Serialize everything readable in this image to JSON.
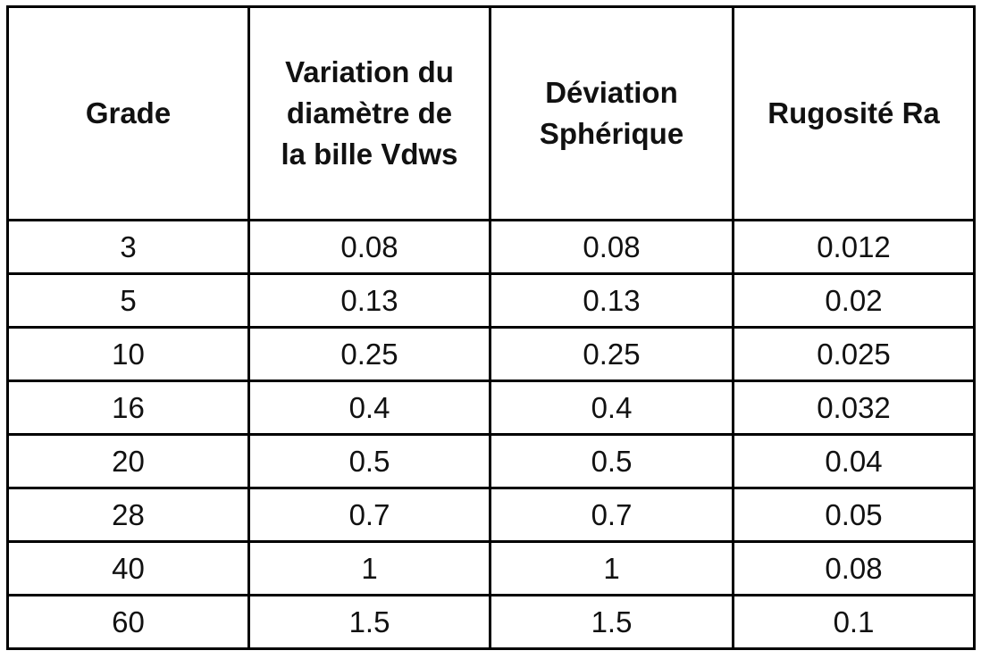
{
  "table": {
    "headers": [
      [
        "Grade"
      ],
      [
        "Variation du",
        "diamètre de",
        "la bille Vdws"
      ],
      [
        "Déviation",
        "Sphérique"
      ],
      [
        "Rugosité Ra"
      ]
    ],
    "rows": [
      [
        3,
        0.08,
        0.08,
        0.012
      ],
      [
        5,
        0.13,
        0.13,
        0.02
      ],
      [
        10,
        0.25,
        0.25,
        0.025
      ],
      [
        16,
        0.4,
        0.4,
        0.032
      ],
      [
        20,
        0.5,
        0.5,
        0.04
      ],
      [
        28,
        0.7,
        0.7,
        0.05
      ],
      [
        40,
        1,
        1,
        0.08
      ],
      [
        60,
        1.5,
        1.5,
        0.1
      ]
    ]
  }
}
